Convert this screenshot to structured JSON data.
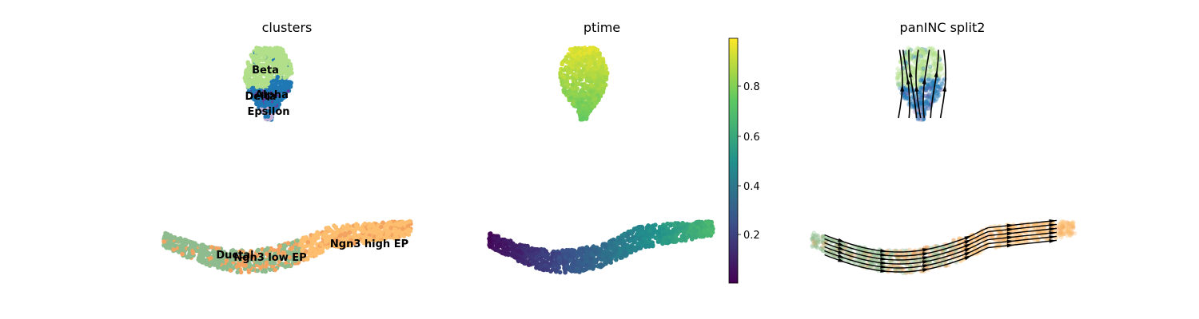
{
  "chart_data": [
    {
      "type": "scatter",
      "title": "clusters",
      "xlabel": "",
      "ylabel": "",
      "legend": "on data",
      "clusters": [
        {
          "name": "Ductal",
          "color": "#8fbc8f"
        },
        {
          "name": "Ngn3 low EP",
          "color": "#f4a460"
        },
        {
          "name": "Ngn3 high EP",
          "color": "#fdbf6f"
        },
        {
          "name": "Beta",
          "color": "#b2df8a"
        },
        {
          "name": "Alpha",
          "color": "#1f78b4"
        },
        {
          "name": "Delta",
          "color": "#6a3d9a"
        },
        {
          "name": "Epsilon",
          "color": "#cab2d6"
        }
      ]
    },
    {
      "type": "scatter",
      "title": "ptime",
      "colorbar": {
        "colormap": "viridis",
        "range": [
          0,
          0.98
        ],
        "ticks": [
          "0.2",
          "0.4",
          "0.6",
          "0.8"
        ]
      }
    },
    {
      "type": "scatter",
      "title": "panINC split2",
      "overlay": "velocity streamlines"
    }
  ],
  "colors": {
    "ductal": "#8fbc8f",
    "ngn3_low": "#f4a460",
    "ngn3_high": "#fdbf6f",
    "beta": "#b2df8a",
    "alpha": "#1f78b4",
    "delta": "#6a3d9a",
    "epsilon": "#cab2d6",
    "stream": "#000000"
  }
}
